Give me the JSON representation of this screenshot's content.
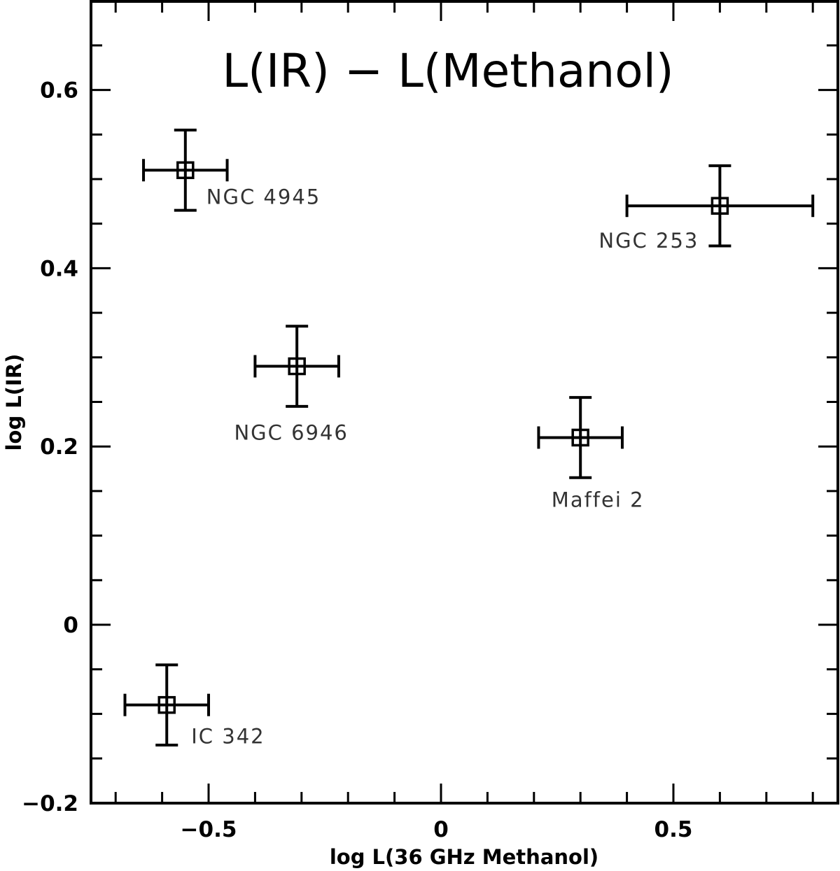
{
  "chart_data": {
    "type": "scatter",
    "title": "L(IR) − L(Methanol)",
    "xlabel": "log L(36 GHz Methanol)",
    "ylabel": "log L(IR)",
    "xlim": [
      -0.75,
      0.85
    ],
    "ylim": [
      -0.2,
      0.7
    ],
    "x_ticks": [
      -0.5,
      0,
      0.5
    ],
    "x_tick_labels": [
      "−0.5",
      "0",
      "0.5"
    ],
    "y_ticks": [
      -0.2,
      0,
      0.2,
      0.4,
      0.6
    ],
    "y_tick_labels": [
      "−0.2",
      "0",
      "0.2",
      "0.4",
      "0.6"
    ],
    "grid": false,
    "marker": "open-square",
    "points": [
      {
        "name": "NGC 4945",
        "x": -0.55,
        "y": 0.51,
        "xerr": 0.09,
        "yerr": 0.045
      },
      {
        "name": "NGC 253",
        "x": 0.6,
        "y": 0.47,
        "xerr": 0.2,
        "yerr": 0.045
      },
      {
        "name": "NGC 6946",
        "x": -0.31,
        "y": 0.29,
        "xerr": 0.09,
        "yerr": 0.045
      },
      {
        "name": "Maffei 2",
        "x": 0.3,
        "y": 0.21,
        "xerr": 0.09,
        "yerr": 0.045
      },
      {
        "name": "IC 342",
        "x": -0.59,
        "y": -0.09,
        "xerr": 0.09,
        "yerr": 0.045
      }
    ]
  }
}
